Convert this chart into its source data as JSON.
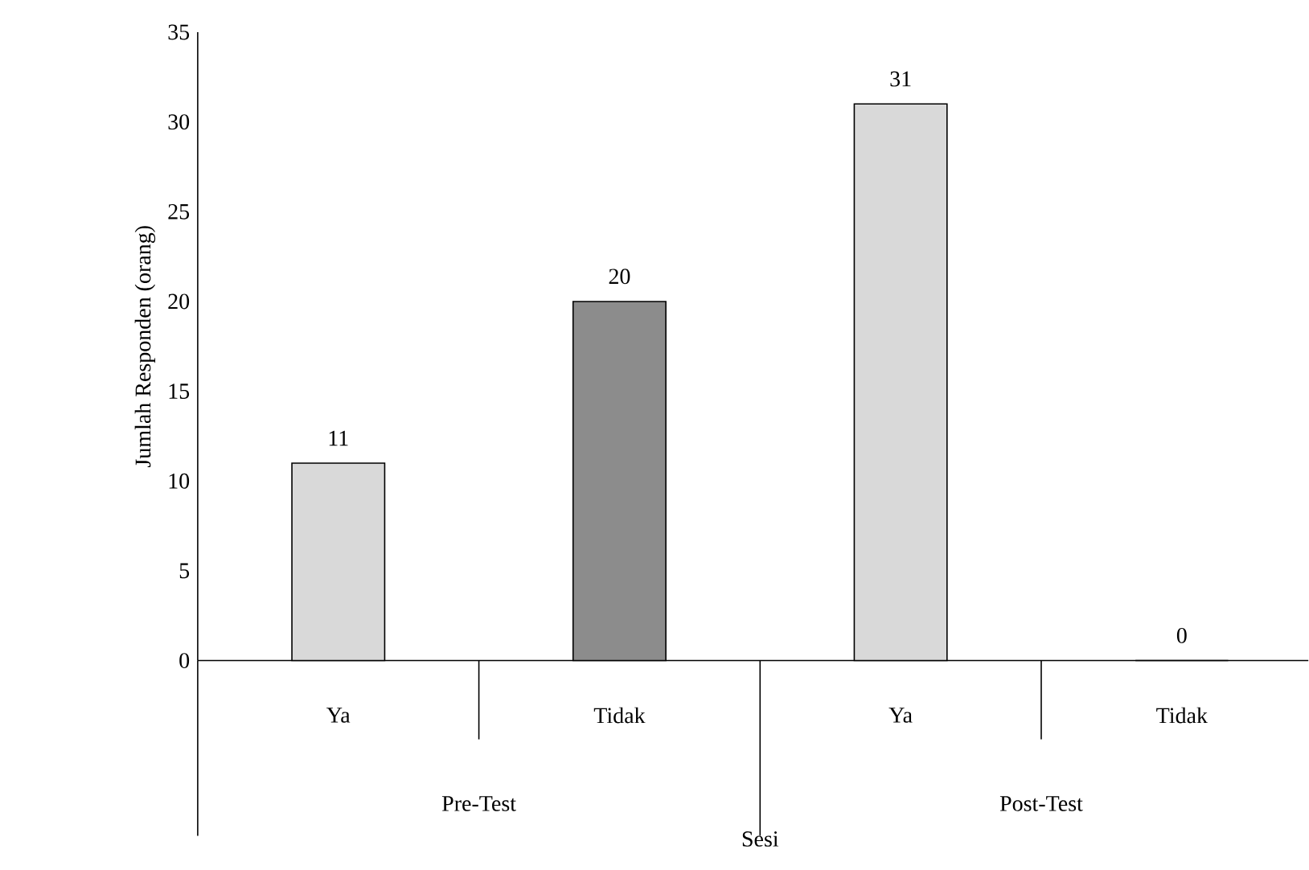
{
  "chart_data": {
    "type": "bar",
    "xlabel": "Sesi",
    "ylabel": "Jumlah Responden (orang)",
    "categories": [
      "Ya",
      "Tidak",
      "Ya",
      "Tidak"
    ],
    "values": [
      11,
      20,
      31,
      0
    ],
    "colors": [
      "#d9d9d9",
      "#8c8c8c",
      "#d9d9d9",
      "#d9d9d9"
    ],
    "ylim": [
      0,
      35
    ],
    "yticks": [
      0,
      5,
      10,
      15,
      20,
      25,
      30,
      35
    ],
    "data_labels": true,
    "grid": false,
    "annotations": [
      "Pre-Test",
      "Post-Test"
    ]
  }
}
